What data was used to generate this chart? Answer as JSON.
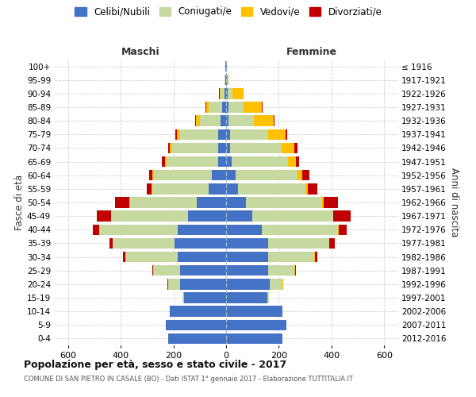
{
  "age_groups": [
    "0-4",
    "5-9",
    "10-14",
    "15-19",
    "20-24",
    "25-29",
    "30-34",
    "35-39",
    "40-44",
    "45-49",
    "50-54",
    "55-59",
    "60-64",
    "65-69",
    "70-74",
    "75-79",
    "80-84",
    "85-89",
    "90-94",
    "95-99",
    "100+"
  ],
  "birth_years": [
    "2012-2016",
    "2007-2011",
    "2002-2006",
    "1997-2001",
    "1992-1996",
    "1987-1991",
    "1982-1986",
    "1977-1981",
    "1972-1976",
    "1967-1971",
    "1962-1966",
    "1957-1961",
    "1952-1956",
    "1947-1951",
    "1942-1946",
    "1937-1941",
    "1932-1936",
    "1927-1931",
    "1922-1926",
    "1917-1921",
    "≤ 1916"
  ],
  "maschi": {
    "celibi": [
      220,
      230,
      215,
      160,
      175,
      175,
      185,
      195,
      185,
      145,
      110,
      65,
      55,
      30,
      30,
      30,
      20,
      15,
      5,
      2,
      2
    ],
    "coniugati": [
      0,
      0,
      0,
      5,
      45,
      100,
      195,
      235,
      295,
      290,
      255,
      215,
      220,
      195,
      175,
      145,
      80,
      50,
      15,
      3,
      0
    ],
    "vedovi": [
      0,
      0,
      0,
      0,
      1,
      1,
      1,
      1,
      2,
      2,
      2,
      3,
      5,
      8,
      8,
      12,
      15,
      10,
      5,
      2,
      0
    ],
    "divorziati": [
      0,
      0,
      0,
      0,
      2,
      5,
      10,
      10,
      25,
      55,
      55,
      18,
      12,
      10,
      8,
      5,
      2,
      2,
      2,
      0,
      0
    ]
  },
  "femmine": {
    "nubili": [
      215,
      230,
      215,
      155,
      165,
      160,
      160,
      160,
      135,
      100,
      75,
      45,
      35,
      20,
      15,
      15,
      10,
      10,
      5,
      2,
      2
    ],
    "coniugate": [
      0,
      0,
      0,
      8,
      50,
      100,
      175,
      230,
      290,
      305,
      290,
      255,
      235,
      215,
      195,
      145,
      95,
      55,
      20,
      2,
      0
    ],
    "vedove": [
      0,
      0,
      0,
      0,
      1,
      1,
      1,
      1,
      2,
      2,
      5,
      10,
      20,
      30,
      50,
      65,
      75,
      70,
      40,
      5,
      0
    ],
    "divorziate": [
      0,
      0,
      0,
      0,
      2,
      5,
      10,
      20,
      30,
      65,
      55,
      35,
      25,
      12,
      10,
      8,
      5,
      3,
      2,
      0,
      0
    ]
  },
  "colors": {
    "celibi": "#4472c4",
    "coniugati": "#c5d9a0",
    "vedovi": "#ffc000",
    "divorziati": "#c00000"
  },
  "legend_labels": [
    "Celibi/Nubili",
    "Coniugati/e",
    "Vedovi/e",
    "Divorziati/e"
  ],
  "title": "Popolazione per età, sesso e stato civile - 2017",
  "subtitle": "COMUNE DI SAN PIETRO IN CASALE (BO) - Dati ISTAT 1° gennaio 2017 - Elaborazione TUTTITALIA.IT",
  "xlabel_left": "Maschi",
  "xlabel_right": "Femmine",
  "ylabel_left": "Fasce di età",
  "ylabel_right": "Anni di nascita",
  "xlim": 650,
  "bg_color": "#ffffff",
  "grid_color": "#cccccc"
}
